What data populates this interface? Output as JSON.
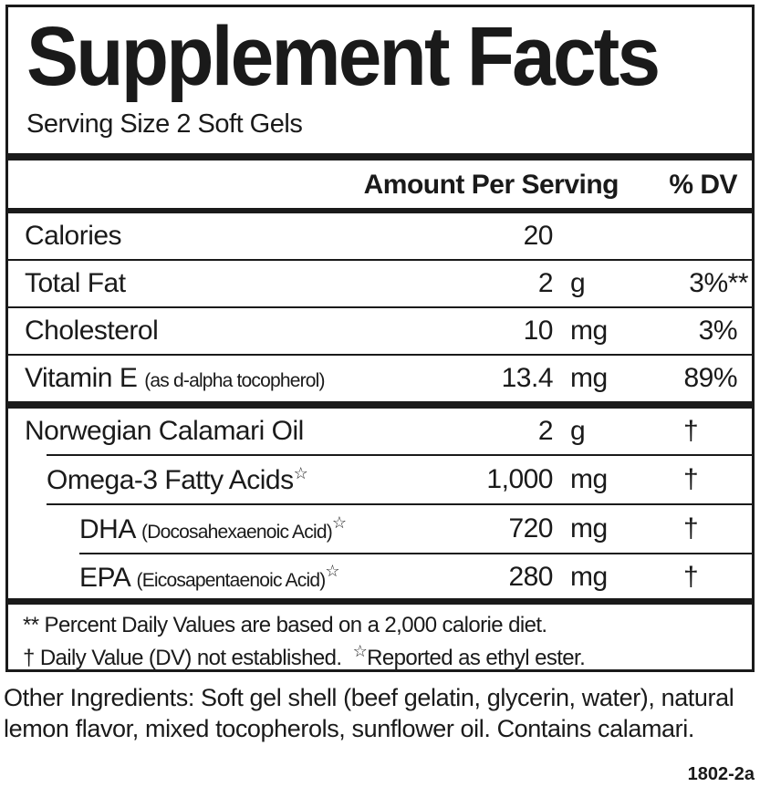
{
  "title": "Supplement Facts",
  "serving_size": "Serving Size 2 Soft Gels",
  "header": {
    "amount": "Amount Per Serving",
    "dv": "% DV"
  },
  "rows": [
    {
      "label": "Calories",
      "note": "",
      "amount": "20",
      "unit": "",
      "dv": ""
    },
    {
      "label": "Total Fat",
      "note": "",
      "amount": "2",
      "unit": "g",
      "dv": "3%**"
    },
    {
      "label": "Cholesterol",
      "note": "",
      "amount": "10",
      "unit": "mg",
      "dv": "3%"
    },
    {
      "label": "Vitamin E",
      "note": "(as d-alpha tocopherol)",
      "amount": "13.4",
      "unit": "mg",
      "dv": "89%"
    }
  ],
  "ingredients": [
    {
      "label": "Norwegian Calamari Oil",
      "note": "",
      "star": "",
      "amount": "2",
      "unit": "g",
      "dv": "†"
    },
    {
      "label": "Omega-3 Fatty Acids",
      "note": "",
      "star": "☆",
      "amount": "1,000",
      "unit": "mg",
      "dv": "†"
    },
    {
      "label": "DHA",
      "note": "(Docosahexaenoic Acid)",
      "star": "☆",
      "amount": "720",
      "unit": "mg",
      "dv": "†"
    },
    {
      "label": "EPA",
      "note": "(Eicosapentaenoic Acid)",
      "star": "☆",
      "amount": "280",
      "unit": "mg",
      "dv": "†"
    }
  ],
  "footnotes": {
    "line1": "** Percent Daily Values are based on a 2,000 calorie diet.",
    "line2a": "† Daily Value (DV) not established.",
    "line2b_star": "☆",
    "line2b": "Reported as ethyl ester."
  },
  "other_ingredients": "Other Ingredients: Soft gel shell (beef gelatin, glycerin, water), natural lemon flavor, mixed tocopherols, sunflower oil. Contains calamari.",
  "code": "1802-2a"
}
